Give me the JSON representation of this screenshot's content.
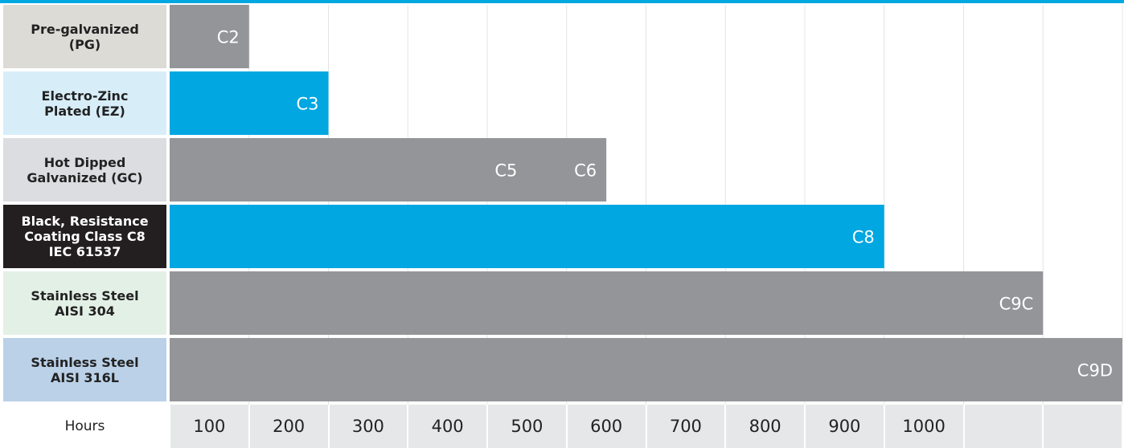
{
  "chart_data": {
    "type": "bar",
    "orientation": "horizontal",
    "xlabel": "Hours",
    "xlim": [
      0,
      1200
    ],
    "xticks": [
      "100",
      "200",
      "300",
      "400",
      "500",
      "600",
      "700",
      "800",
      "900",
      "1000",
      "",
      ""
    ],
    "grid": true,
    "categories": [
      "Pre-galvanized\n(PG)",
      "Electro-Zinc\nPlated (EZ)",
      "Hot Dipped\nGalvanized (GC)",
      "Black, Resistance\nCoating Class C8\nIEC 61537",
      "Stainless Steel\nAISI 304",
      "Stainless Steel\nAISI 316L"
    ],
    "values": [
      100,
      200,
      550,
      900,
      1100,
      1200
    ],
    "bars": [
      {
        "value": 100,
        "labels": [
          {
            "text": "C2",
            "at": 100
          }
        ],
        "color": "#939598"
      },
      {
        "value": 200,
        "labels": [
          {
            "text": "C3",
            "at": 200
          }
        ],
        "color": "#00a7e1"
      },
      {
        "value": 550,
        "labels": [
          {
            "text": "C5",
            "at": 450
          },
          {
            "text": "C6",
            "at": 550
          }
        ],
        "color": "#939598"
      },
      {
        "value": 900,
        "labels": [
          {
            "text": "C8",
            "at": 900
          }
        ],
        "color": "#00a7e1"
      },
      {
        "value": 1100,
        "labels": [
          {
            "text": "C9C",
            "at": 1100
          }
        ],
        "color": "#939598"
      },
      {
        "value": 1200,
        "labels": [
          {
            "text": "C9D",
            "at": 1200
          }
        ],
        "color": "#939598"
      }
    ],
    "row_label_colors": [
      "#dcdbd6",
      "#d7eef9",
      "#dcdde0",
      "#231f20",
      "#e3f0e6",
      "#bad1e8"
    ],
    "row_label_text_colors": [
      "#222222",
      "#222222",
      "#222222",
      "#ffffff",
      "#222222",
      "#222222"
    ]
  }
}
